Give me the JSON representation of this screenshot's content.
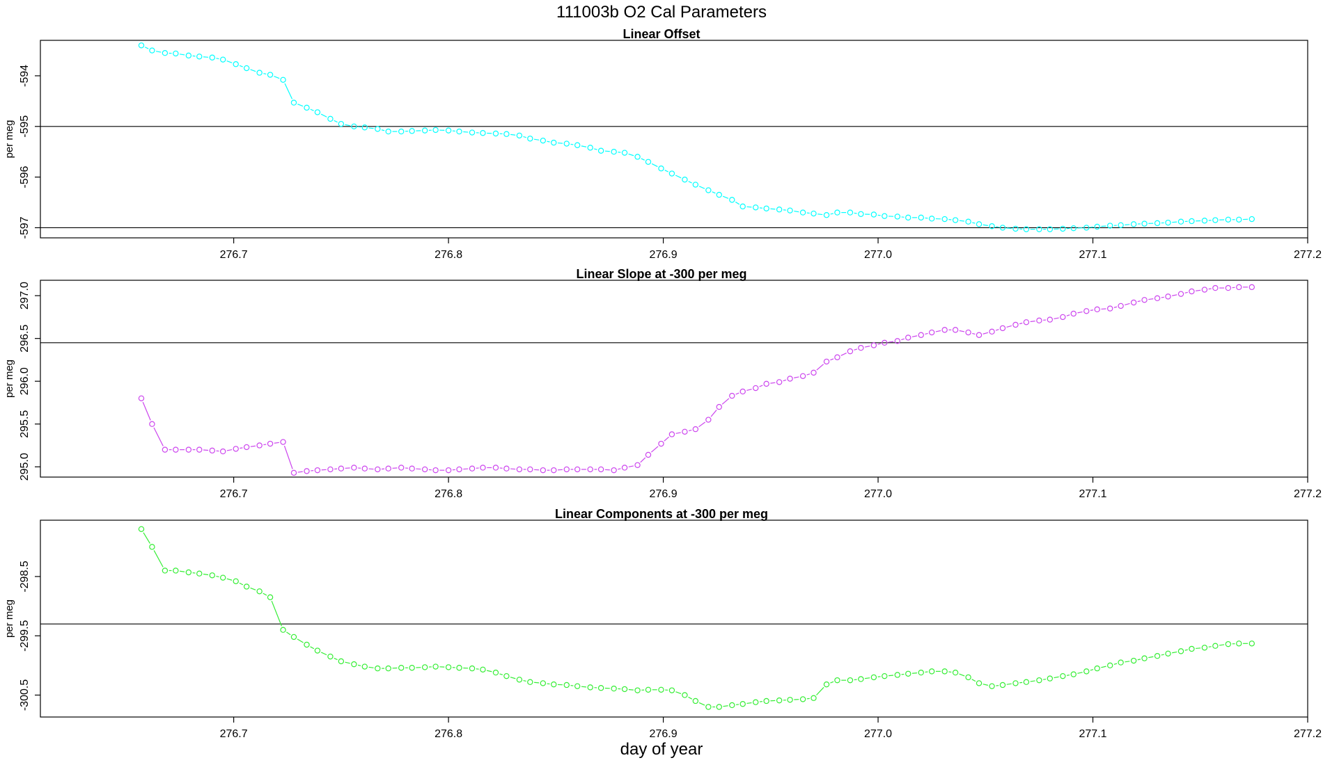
{
  "title": "111003b   O2 Cal Parameters",
  "xlabel": "day of year",
  "chart_data": [
    {
      "type": "line",
      "title": "Linear Offset",
      "ylabel": "per meg",
      "color": "#00FFFF",
      "xlim": [
        276.61,
        277.2
      ],
      "ylim": [
        -597.2,
        -593.3
      ],
      "xticks": [
        276.7,
        276.8,
        276.9,
        277.0,
        277.1,
        277.2
      ],
      "xtick_labels": [
        "276.7",
        "276.8",
        "276.9",
        "277.0",
        "277.1",
        "277.2"
      ],
      "yticks": [
        -597,
        -596,
        -595,
        -594
      ],
      "ytick_labels": [
        "-597",
        "-596",
        "-595",
        "-594"
      ],
      "hlines": [
        -595.0,
        -597.0
      ],
      "x": [
        276.657,
        276.662,
        276.668,
        276.673,
        276.679,
        276.684,
        276.69,
        276.695,
        276.701,
        276.706,
        276.712,
        276.717,
        276.723,
        276.728,
        276.734,
        276.739,
        276.745,
        276.75,
        276.756,
        276.761,
        276.767,
        276.772,
        276.778,
        276.783,
        276.789,
        276.794,
        276.8,
        276.805,
        276.811,
        276.816,
        276.822,
        276.827,
        276.833,
        276.838,
        276.844,
        276.849,
        276.855,
        276.86,
        276.866,
        276.871,
        276.877,
        276.882,
        276.888,
        276.893,
        276.899,
        276.904,
        276.91,
        276.915,
        276.921,
        276.926,
        276.932,
        276.937,
        276.943,
        276.948,
        276.954,
        276.959,
        276.965,
        276.97,
        276.976,
        276.981,
        276.987,
        276.992,
        276.998,
        277.003,
        277.009,
        277.014,
        277.02,
        277.025,
        277.031,
        277.036,
        277.042,
        277.047,
        277.053,
        277.058,
        277.064,
        277.069,
        277.075,
        277.08,
        277.086,
        277.091,
        277.097,
        277.102,
        277.108,
        277.113,
        277.119,
        277.124,
        277.13,
        277.135,
        277.141,
        277.146,
        277.152,
        277.157,
        277.163,
        277.168,
        277.174
      ],
      "y": [
        -593.4,
        -593.5,
        -593.55,
        -593.56,
        -593.6,
        -593.62,
        -593.64,
        -593.68,
        -593.77,
        -593.85,
        -593.94,
        -593.98,
        -594.08,
        -594.53,
        -594.63,
        -594.72,
        -594.85,
        -594.95,
        -595.0,
        -595.02,
        -595.05,
        -595.1,
        -595.1,
        -595.09,
        -595.08,
        -595.07,
        -595.08,
        -595.1,
        -595.12,
        -595.13,
        -595.14,
        -595.15,
        -595.18,
        -595.24,
        -595.28,
        -595.32,
        -595.34,
        -595.37,
        -595.42,
        -595.48,
        -595.5,
        -595.52,
        -595.6,
        -595.7,
        -595.83,
        -595.93,
        -596.05,
        -596.15,
        -596.26,
        -596.35,
        -596.45,
        -596.58,
        -596.6,
        -596.62,
        -596.64,
        -596.66,
        -596.7,
        -596.72,
        -596.75,
        -596.7,
        -596.7,
        -596.73,
        -596.74,
        -596.77,
        -596.78,
        -596.8,
        -596.8,
        -596.82,
        -596.83,
        -596.85,
        -596.88,
        -596.93,
        -596.97,
        -597.0,
        -597.02,
        -597.03,
        -597.03,
        -597.03,
        -597.02,
        -597.01,
        -597.0,
        -596.98,
        -596.96,
        -596.95,
        -596.93,
        -596.92,
        -596.91,
        -596.9,
        -596.88,
        -596.87,
        -596.86,
        -596.85,
        -596.84,
        -596.84,
        -596.83
      ]
    },
    {
      "type": "line",
      "title": "Linear Slope at -300 per meg",
      "ylabel": "per meg",
      "color": "#CC44EE",
      "xlim": [
        276.61,
        277.2
      ],
      "ylim": [
        294.88,
        297.18
      ],
      "xticks": [
        276.7,
        276.8,
        276.9,
        277.0,
        277.1,
        277.2
      ],
      "xtick_labels": [
        "276.7",
        "276.8",
        "276.9",
        "277.0",
        "277.1",
        "277.2"
      ],
      "yticks": [
        295.0,
        295.5,
        296.0,
        296.5,
        297.0
      ],
      "ytick_labels": [
        "295.0",
        "295.5",
        "296.0",
        "296.5",
        "297.0"
      ],
      "hlines": [
        296.45
      ],
      "x": [
        276.657,
        276.662,
        276.668,
        276.673,
        276.679,
        276.684,
        276.69,
        276.695,
        276.701,
        276.706,
        276.712,
        276.717,
        276.723,
        276.728,
        276.734,
        276.739,
        276.745,
        276.75,
        276.756,
        276.761,
        276.767,
        276.772,
        276.778,
        276.783,
        276.789,
        276.794,
        276.8,
        276.805,
        276.811,
        276.816,
        276.822,
        276.827,
        276.833,
        276.838,
        276.844,
        276.849,
        276.855,
        276.86,
        276.866,
        276.871,
        276.877,
        276.882,
        276.888,
        276.893,
        276.899,
        276.904,
        276.91,
        276.915,
        276.921,
        276.926,
        276.932,
        276.937,
        276.943,
        276.948,
        276.954,
        276.959,
        276.965,
        276.97,
        276.976,
        276.981,
        276.987,
        276.992,
        276.998,
        277.003,
        277.009,
        277.014,
        277.02,
        277.025,
        277.031,
        277.036,
        277.042,
        277.047,
        277.053,
        277.058,
        277.064,
        277.069,
        277.075,
        277.08,
        277.086,
        277.091,
        277.097,
        277.102,
        277.108,
        277.113,
        277.119,
        277.124,
        277.13,
        277.135,
        277.141,
        277.146,
        277.152,
        277.157,
        277.163,
        277.168,
        277.174
      ],
      "y": [
        295.8,
        295.5,
        295.2,
        295.2,
        295.2,
        295.2,
        295.19,
        295.18,
        295.21,
        295.23,
        295.25,
        295.27,
        295.29,
        294.93,
        294.95,
        294.96,
        294.97,
        294.98,
        294.99,
        294.98,
        294.97,
        294.98,
        294.99,
        294.98,
        294.97,
        294.96,
        294.96,
        294.97,
        294.98,
        294.99,
        294.99,
        294.98,
        294.97,
        294.97,
        294.96,
        294.96,
        294.97,
        294.97,
        294.97,
        294.97,
        294.96,
        294.99,
        295.02,
        295.14,
        295.27,
        295.38,
        295.41,
        295.44,
        295.55,
        295.7,
        295.83,
        295.88,
        295.92,
        295.97,
        295.99,
        296.03,
        296.06,
        296.1,
        296.23,
        296.28,
        296.35,
        296.39,
        296.42,
        296.45,
        296.47,
        296.51,
        296.54,
        296.57,
        296.6,
        296.6,
        296.57,
        296.54,
        296.58,
        296.62,
        296.66,
        296.69,
        296.71,
        296.72,
        296.75,
        296.79,
        296.82,
        296.84,
        296.85,
        296.88,
        296.92,
        296.95,
        296.97,
        296.99,
        297.02,
        297.05,
        297.07,
        297.09,
        297.09,
        297.1,
        297.1
      ]
    },
    {
      "type": "line",
      "title": "Linear Components at -300 per meg",
      "ylabel": "per meg",
      "color": "#33EE33",
      "xlim": [
        276.61,
        277.2
      ],
      "ylim": [
        -300.87,
        -297.55
      ],
      "xticks": [
        276.7,
        276.8,
        276.9,
        277.0,
        277.1,
        277.2
      ],
      "xtick_labels": [
        "276.7",
        "276.8",
        "276.9",
        "277.0",
        "277.1",
        "277.2"
      ],
      "yticks": [
        -300.5,
        -299.5,
        -298.5
      ],
      "ytick_labels": [
        "-300.5",
        "-299.5",
        "-298.5"
      ],
      "hlines": [
        -299.3
      ],
      "x": [
        276.657,
        276.662,
        276.668,
        276.673,
        276.679,
        276.684,
        276.69,
        276.695,
        276.701,
        276.706,
        276.712,
        276.717,
        276.723,
        276.728,
        276.734,
        276.739,
        276.745,
        276.75,
        276.756,
        276.761,
        276.767,
        276.772,
        276.778,
        276.783,
        276.789,
        276.794,
        276.8,
        276.805,
        276.811,
        276.816,
        276.822,
        276.827,
        276.833,
        276.838,
        276.844,
        276.849,
        276.855,
        276.86,
        276.866,
        276.871,
        276.877,
        276.882,
        276.888,
        276.893,
        276.899,
        276.904,
        276.91,
        276.915,
        276.921,
        276.926,
        276.932,
        276.937,
        276.943,
        276.948,
        276.954,
        276.959,
        276.965,
        276.97,
        276.976,
        276.981,
        276.987,
        276.992,
        276.998,
        277.003,
        277.009,
        277.014,
        277.02,
        277.025,
        277.031,
        277.036,
        277.042,
        277.047,
        277.053,
        277.058,
        277.064,
        277.069,
        277.075,
        277.08,
        277.086,
        277.091,
        277.097,
        277.102,
        277.108,
        277.113,
        277.119,
        277.124,
        277.13,
        277.135,
        277.141,
        277.146,
        277.152,
        277.157,
        277.163,
        277.168,
        277.174
      ],
      "y": [
        -297.7,
        -298.0,
        -298.4,
        -298.4,
        -298.43,
        -298.45,
        -298.48,
        -298.52,
        -298.58,
        -298.67,
        -298.75,
        -298.85,
        -299.4,
        -299.52,
        -299.65,
        -299.75,
        -299.85,
        -299.93,
        -299.98,
        -300.02,
        -300.05,
        -300.05,
        -300.04,
        -300.04,
        -300.03,
        -300.02,
        -300.03,
        -300.04,
        -300.05,
        -300.07,
        -300.12,
        -300.18,
        -300.24,
        -300.28,
        -300.3,
        -300.32,
        -300.33,
        -300.35,
        -300.37,
        -300.38,
        -300.39,
        -300.4,
        -300.42,
        -300.41,
        -300.41,
        -300.42,
        -300.5,
        -300.6,
        -300.7,
        -300.7,
        -300.67,
        -300.65,
        -300.62,
        -300.6,
        -300.59,
        -300.58,
        -300.57,
        -300.55,
        -300.32,
        -300.25,
        -300.25,
        -300.23,
        -300.2,
        -300.18,
        -300.16,
        -300.14,
        -300.12,
        -300.1,
        -300.1,
        -300.12,
        -300.2,
        -300.3,
        -300.35,
        -300.33,
        -300.3,
        -300.28,
        -300.25,
        -300.22,
        -300.18,
        -300.15,
        -300.1,
        -300.05,
        -300.0,
        -299.95,
        -299.92,
        -299.88,
        -299.84,
        -299.8,
        -299.76,
        -299.72,
        -299.7,
        -299.67,
        -299.64,
        -299.63,
        -299.63
      ]
    }
  ]
}
